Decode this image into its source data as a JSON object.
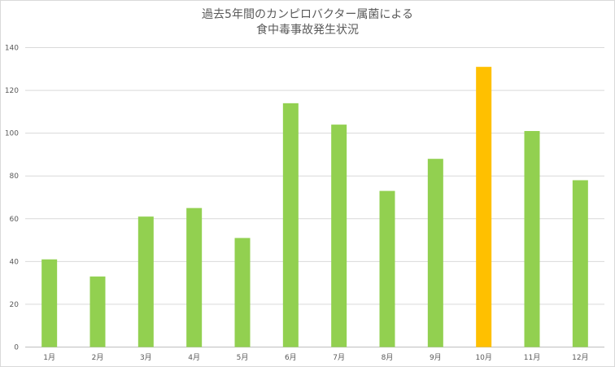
{
  "chart_data": {
    "type": "bar",
    "title_lines": [
      "過去5年間のカンピロバクター属菌による",
      "食中毒事故発生状況"
    ],
    "categories": [
      "1月",
      "2月",
      "3月",
      "4月",
      "5月",
      "6月",
      "7月",
      "8月",
      "9月",
      "10月",
      "11月",
      "12月"
    ],
    "values": [
      41,
      33,
      61,
      65,
      51,
      114,
      104,
      73,
      88,
      131,
      101,
      78
    ],
    "highlight_index": 9,
    "xlabel": "",
    "ylabel": "",
    "ylim": [
      0,
      140
    ],
    "yticks": [
      0,
      20,
      40,
      60,
      80,
      100,
      120,
      140
    ],
    "grid": true,
    "legend": "none",
    "colors": {
      "bar": "#92d050",
      "highlight": "#ffc000",
      "grid": "#d9d9d9",
      "text": "#595959"
    }
  }
}
